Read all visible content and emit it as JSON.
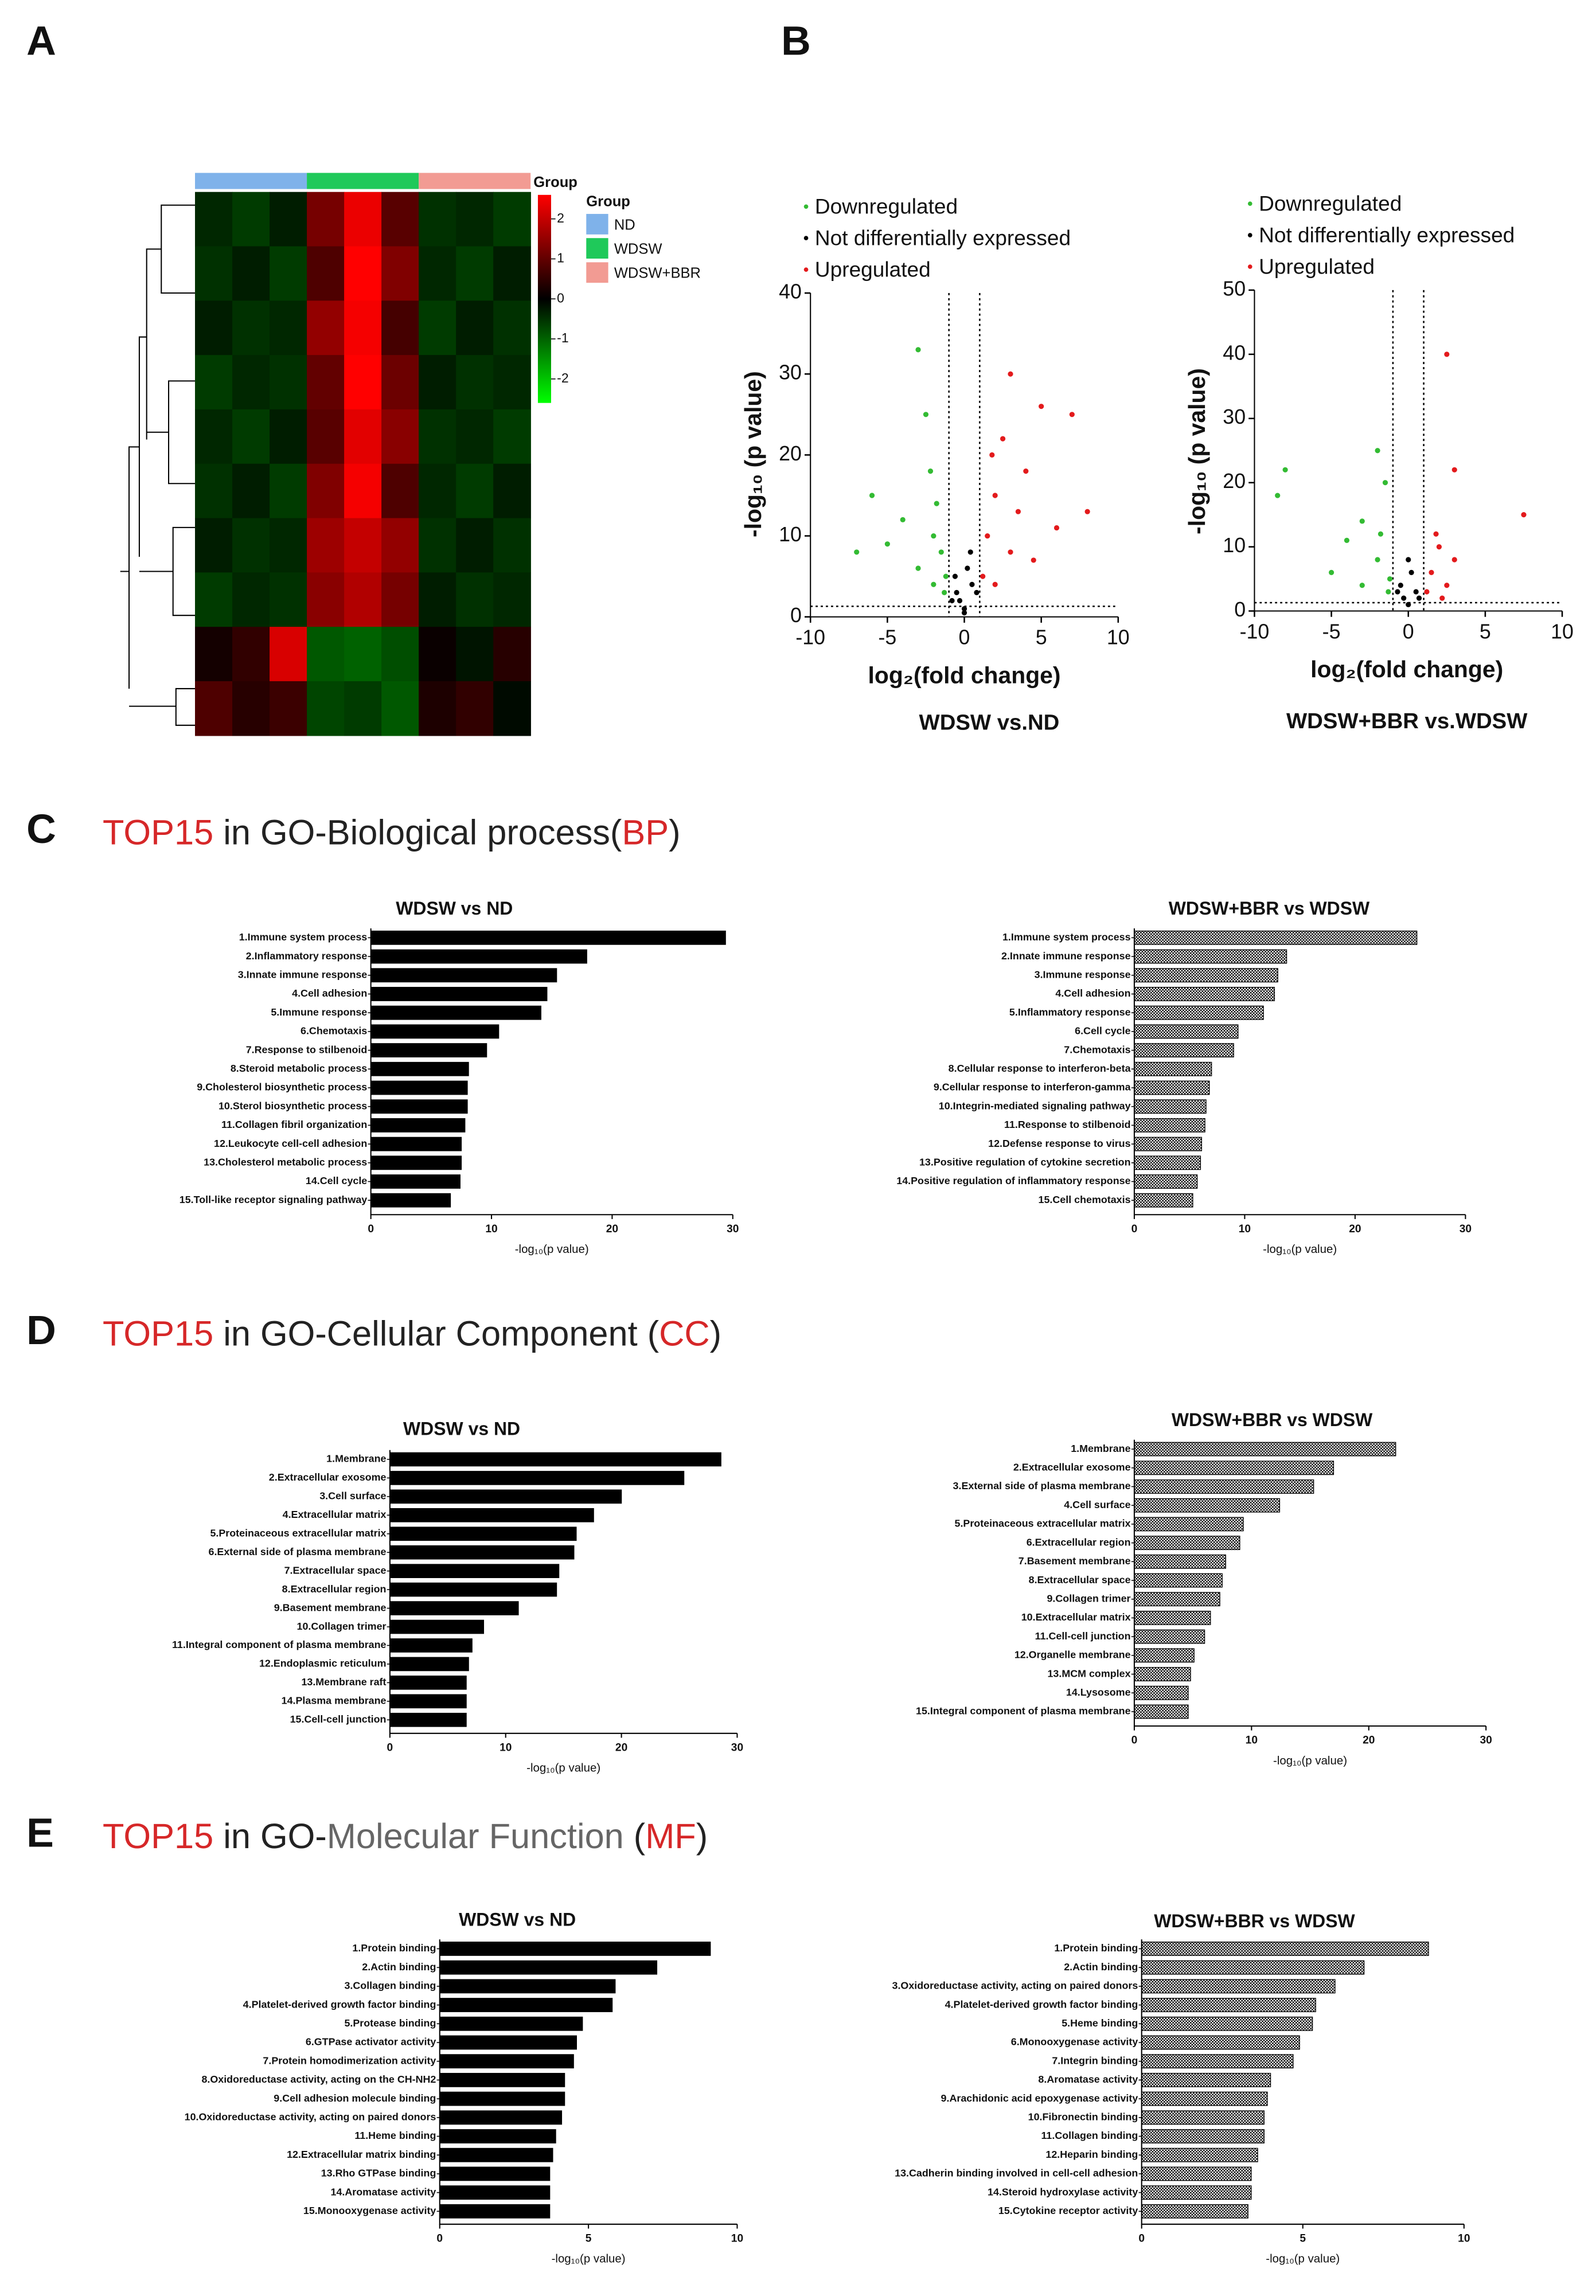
{
  "panels": [
    {
      "label": "A"
    },
    {
      "label": "B"
    },
    {
      "label": "C",
      "heading": [
        {
          "text": "TOP15",
          "color": "#d62728"
        },
        {
          "text": " in GO-Biological process(",
          "color": "#222222"
        },
        {
          "text": "BP",
          "color": "#d62728"
        },
        {
          "text": ")",
          "color": "#222222"
        }
      ]
    },
    {
      "label": "D",
      "heading": [
        {
          "text": "TOP15",
          "color": "#d62728"
        },
        {
          "text": " in GO-Cellular Component (",
          "color": "#222222"
        },
        {
          "text": "CC",
          "color": "#d62728"
        },
        {
          "text": ")",
          "color": "#222222"
        }
      ]
    },
    {
      "label": "E",
      "heading": [
        {
          "text": "TOP15",
          "color": "#d62728"
        },
        {
          "text": " in GO-",
          "color": "#222222"
        },
        {
          "text": "Molecular Function",
          "color": "#666666"
        },
        {
          "text": " (",
          "color": "#222222"
        },
        {
          "text": "MF",
          "color": "#d62728"
        },
        {
          "text": ")",
          "color": "#222222"
        }
      ]
    }
  ],
  "chart_data": [
    {
      "type": "heatmap",
      "group_title": "Group",
      "groups": [
        {
          "name": "ND",
          "color": "#7fb2ea"
        },
        {
          "name": "WDSW",
          "color": "#1fc95a"
        },
        {
          "name": "WDSW+BBR",
          "color": "#f29b93"
        }
      ],
      "colorbar_lim": [
        -2.6,
        2.6
      ],
      "colorbar_ticks": [
        2,
        1,
        0,
        -1,
        -2
      ],
      "values": [
        [
          -0.4,
          -0.6,
          -0.3,
          1.2,
          2.4,
          0.9,
          -0.5,
          -0.4,
          -0.6
        ],
        [
          -0.5,
          -0.3,
          -0.6,
          0.8,
          2.6,
          1.3,
          -0.4,
          -0.6,
          -0.3
        ],
        [
          -0.3,
          -0.5,
          -0.4,
          1.5,
          2.5,
          0.7,
          -0.6,
          -0.3,
          -0.5
        ],
        [
          -0.6,
          -0.4,
          -0.5,
          1.0,
          2.7,
          1.1,
          -0.3,
          -0.5,
          -0.4
        ],
        [
          -0.4,
          -0.6,
          -0.3,
          0.9,
          2.3,
          1.4,
          -0.5,
          -0.4,
          -0.6
        ],
        [
          -0.5,
          -0.3,
          -0.6,
          1.3,
          2.5,
          0.8,
          -0.4,
          -0.6,
          -0.3
        ],
        [
          -0.3,
          -0.5,
          -0.4,
          1.6,
          2.0,
          1.5,
          -0.5,
          -0.3,
          -0.5
        ],
        [
          -0.6,
          -0.4,
          -0.5,
          1.4,
          1.8,
          1.2,
          -0.3,
          -0.5,
          -0.4
        ],
        [
          0.2,
          0.5,
          2.2,
          -0.9,
          -1.0,
          -0.8,
          0.1,
          -0.2,
          0.4
        ],
        [
          0.8,
          0.4,
          0.6,
          -0.7,
          -0.6,
          -0.9,
          0.3,
          0.5,
          -0.1
        ]
      ]
    },
    {
      "type": "scatter",
      "title": "WDSW vs.ND",
      "x_label": "log₂(fold change)",
      "y_label": "-log₁₀ (p value)",
      "xlim": [
        -10,
        10
      ],
      "ylim": [
        0,
        40
      ],
      "xticks": [
        -10,
        -5,
        0,
        5,
        10
      ],
      "yticks": [
        0,
        10,
        20,
        30,
        40
      ],
      "vlines": [
        -1,
        1
      ],
      "hline": 1.3,
      "series": [
        {
          "name": "Downregulated",
          "color": "#33bb33",
          "x": [
            -3,
            -2.5,
            -6,
            -4,
            -2,
            -1.5,
            -3,
            -1.2,
            -2,
            -7,
            -1.8,
            -1.3,
            -5,
            -2.2
          ],
          "values": [
            33,
            25,
            15,
            12,
            10,
            8,
            6,
            5,
            4,
            8,
            14,
            3,
            9,
            18
          ]
        },
        {
          "name": "Not differentially expressed",
          "color": "#000000",
          "x": [
            0,
            -0.5,
            0.5,
            0.2,
            -0.3,
            0.8,
            -0.8,
            0.4,
            0,
            -0.6
          ],
          "values": [
            1,
            3,
            4,
            6,
            2,
            3,
            2,
            8,
            0.5,
            5
          ]
        },
        {
          "name": "Upregulated",
          "color": "#e31a1c",
          "x": [
            3,
            2.5,
            5,
            7,
            8,
            2,
            1.5,
            3,
            4,
            1.2,
            6,
            2,
            3.5,
            1.8,
            4.5
          ],
          "values": [
            30,
            22,
            26,
            25,
            13,
            15,
            10,
            8,
            18,
            5,
            11,
            4,
            13,
            20,
            7
          ]
        }
      ]
    },
    {
      "type": "scatter",
      "title": "WDSW+BBR vs.WDSW",
      "x_label": "log₂(fold change)",
      "y_label": "-log₁₀ (p value)",
      "xlim": [
        -10,
        10
      ],
      "ylim": [
        0,
        50
      ],
      "xticks": [
        -10,
        -5,
        0,
        5,
        10
      ],
      "yticks": [
        0,
        10,
        20,
        30,
        40,
        50
      ],
      "vlines": [
        -1,
        1
      ],
      "hline": 1.3,
      "series": [
        {
          "name": "Downregulated",
          "color": "#33bb33",
          "x": [
            -8,
            -8.5,
            -2,
            -1.5,
            -3,
            -4,
            -2,
            -1.2,
            -5,
            -1.8,
            -3,
            -1.3
          ],
          "values": [
            22,
            18,
            25,
            20,
            14,
            11,
            8,
            5,
            6,
            12,
            4,
            3
          ]
        },
        {
          "name": "Not differentially expressed",
          "color": "#000000",
          "x": [
            0,
            -0.5,
            0.5,
            0.2,
            -0.3,
            0.7,
            -0.7,
            0
          ],
          "values": [
            1,
            4,
            3,
            6,
            2,
            2,
            3,
            8
          ]
        },
        {
          "name": "Upregulated",
          "color": "#e31a1c",
          "x": [
            2.5,
            3,
            7.5,
            2,
            1.5,
            2.5,
            1.2,
            3,
            1.8,
            2.2
          ],
          "values": [
            40,
            22,
            15,
            10,
            6,
            4,
            3,
            8,
            12,
            2
          ]
        }
      ]
    },
    {
      "type": "barh",
      "title": "WDSW vs ND",
      "x_label": "-log₁₀(p value)",
      "fill": "solid",
      "color": "#000000",
      "xlim": [
        0,
        30
      ],
      "xticks": [
        0,
        10,
        20,
        30
      ],
      "categories": [
        "1.Immune system process",
        "2.Inflammatory response",
        "3.Innate immune response",
        "4.Cell adhesion",
        "5.Immune response",
        "6.Chemotaxis",
        "7.Response to stilbenoid",
        "8.Steroid metabolic process",
        "9.Cholesterol biosynthetic process",
        "10.Sterol biosynthetic process",
        "11.Collagen fibril organization",
        "12.Leukocyte cell-cell adhesion",
        "13.Cholesterol metabolic process",
        "14.Cell cycle",
        "15.Toll-like receptor signaling pathway"
      ],
      "values": [
        29.4,
        17.9,
        15.4,
        14.6,
        14.1,
        10.6,
        9.6,
        8.1,
        8.0,
        8.0,
        7.8,
        7.5,
        7.5,
        7.4,
        6.6
      ]
    },
    {
      "type": "barh",
      "title": "WDSW+BBR vs WDSW",
      "x_label": "-log₁₀(p value)",
      "fill": "checker",
      "color": "#000000",
      "xlim": [
        0,
        30
      ],
      "xticks": [
        0,
        10,
        20,
        30
      ],
      "categories": [
        "1.Immune system process",
        "2.Innate immune response",
        "3.Immune response",
        "4.Cell adhesion",
        "5.Inflammatory response",
        "6.Cell cycle",
        "7.Chemotaxis",
        "8.Cellular response to interferon-beta",
        "9.Cellular response to interferon-gamma",
        "10.Integrin-mediated signaling pathway",
        "11.Response to stilbenoid",
        "12.Defense response to virus",
        "13.Positive regulation of cytokine secretion",
        "14.Positive regulation of inflammatory response",
        "15.Cell chemotaxis"
      ],
      "values": [
        25.6,
        13.8,
        13.0,
        12.7,
        11.7,
        9.4,
        9.0,
        7.0,
        6.8,
        6.5,
        6.4,
        6.1,
        6.0,
        5.7,
        5.3
      ]
    },
    {
      "type": "barh",
      "title": "WDSW vs ND",
      "x_label": "-log₁₀(p value)",
      "fill": "solid",
      "color": "#000000",
      "xlim": [
        0,
        30
      ],
      "xticks": [
        0,
        10,
        20,
        30
      ],
      "categories": [
        "1.Membrane",
        "2.Extracellular exosome",
        "3.Cell surface",
        "4.Extracellular matrix",
        "5.Proteinaceous extracellular matrix",
        "6.External side of plasma membrane",
        "7.Extracellular space",
        "8.Extracellular region",
        "9.Basement membrane",
        "10.Collagen trimer",
        "11.Integral component of plasma membrane",
        "12.Endoplasmic reticulum",
        "13.Membrane raft",
        "14.Plasma membrane",
        "15.Cell-cell junction"
      ],
      "values": [
        28.6,
        25.4,
        20.0,
        17.6,
        16.1,
        15.9,
        14.6,
        14.4,
        11.1,
        8.1,
        7.1,
        6.8,
        6.6,
        6.6,
        6.6
      ]
    },
    {
      "type": "barh",
      "title": "WDSW+BBR vs WDSW",
      "x_label": "-log₁₀(p value)",
      "fill": "checker",
      "color": "#000000",
      "xlim": [
        0,
        30
      ],
      "xticks": [
        0,
        10,
        20,
        30
      ],
      "categories": [
        "1.Membrane",
        "2.Extracellular exosome",
        "3.External side of plasma membrane",
        "4.Cell surface",
        "5.Proteinaceous extracellular matrix",
        "6.Extracellular region",
        "7.Basement membrane",
        "8.Extracellular space",
        "9.Collagen trimer",
        "10.Extracellular matrix",
        "11.Cell-cell junction",
        "12.Organelle membrane",
        "13.MCM complex",
        "14.Lysosome",
        "15.Integral component of plasma membrane"
      ],
      "values": [
        22.3,
        17.0,
        15.3,
        12.4,
        9.3,
        9.0,
        7.8,
        7.5,
        7.3,
        6.5,
        6.0,
        5.1,
        4.8,
        4.6,
        4.6
      ]
    },
    {
      "type": "barh",
      "title": "WDSW vs ND",
      "x_label": "-log₁₀(p value)",
      "fill": "solid",
      "color": "#000000",
      "xlim": [
        0,
        10
      ],
      "xticks": [
        0,
        5,
        10
      ],
      "categories": [
        "1.Protein binding",
        "2.Actin binding",
        "3.Collagen binding",
        "4.Platelet-derived growth factor binding",
        "5.Protease binding",
        "6.GTPase activator activity",
        "7.Protein homodimerization activity",
        "8.Oxidoreductase activity, acting on the CH-NH2",
        "9.Cell adhesion molecule binding",
        "10.Oxidoreductase activity, acting on paired donors",
        "11.Heme binding",
        "12.Extracellular matrix binding",
        "13.Rho GTPase binding",
        "14.Aromatase activity",
        "15.Monooxygenase activity"
      ],
      "values": [
        9.1,
        7.3,
        5.9,
        5.8,
        4.8,
        4.6,
        4.5,
        4.2,
        4.2,
        4.1,
        3.9,
        3.8,
        3.7,
        3.7,
        3.7
      ]
    },
    {
      "type": "barh",
      "title": "WDSW+BBR vs WDSW",
      "x_label": "-log₁₀(p value)",
      "fill": "checker",
      "color": "#000000",
      "xlim": [
        0,
        10
      ],
      "xticks": [
        0,
        5,
        10
      ],
      "categories": [
        "1.Protein binding",
        "2.Actin binding",
        "3.Oxidoreductase activity, acting on paired donors",
        "4.Platelet-derived growth factor binding",
        "5.Heme binding",
        "6.Monooxygenase activity",
        "7.Integrin binding",
        "8.Aromatase activity",
        "9.Arachidonic acid epoxygenase activity",
        "10.Fibronectin binding",
        "11.Collagen binding",
        "12.Heparin binding",
        "13.Cadherin binding involved in cell-cell adhesion",
        "14.Steroid hydroxylase activity",
        "15.Cytokine receptor activity"
      ],
      "values": [
        8.9,
        6.9,
        6.0,
        5.4,
        5.3,
        4.9,
        4.7,
        4.0,
        3.9,
        3.8,
        3.8,
        3.6,
        3.4,
        3.4,
        3.3
      ]
    }
  ]
}
